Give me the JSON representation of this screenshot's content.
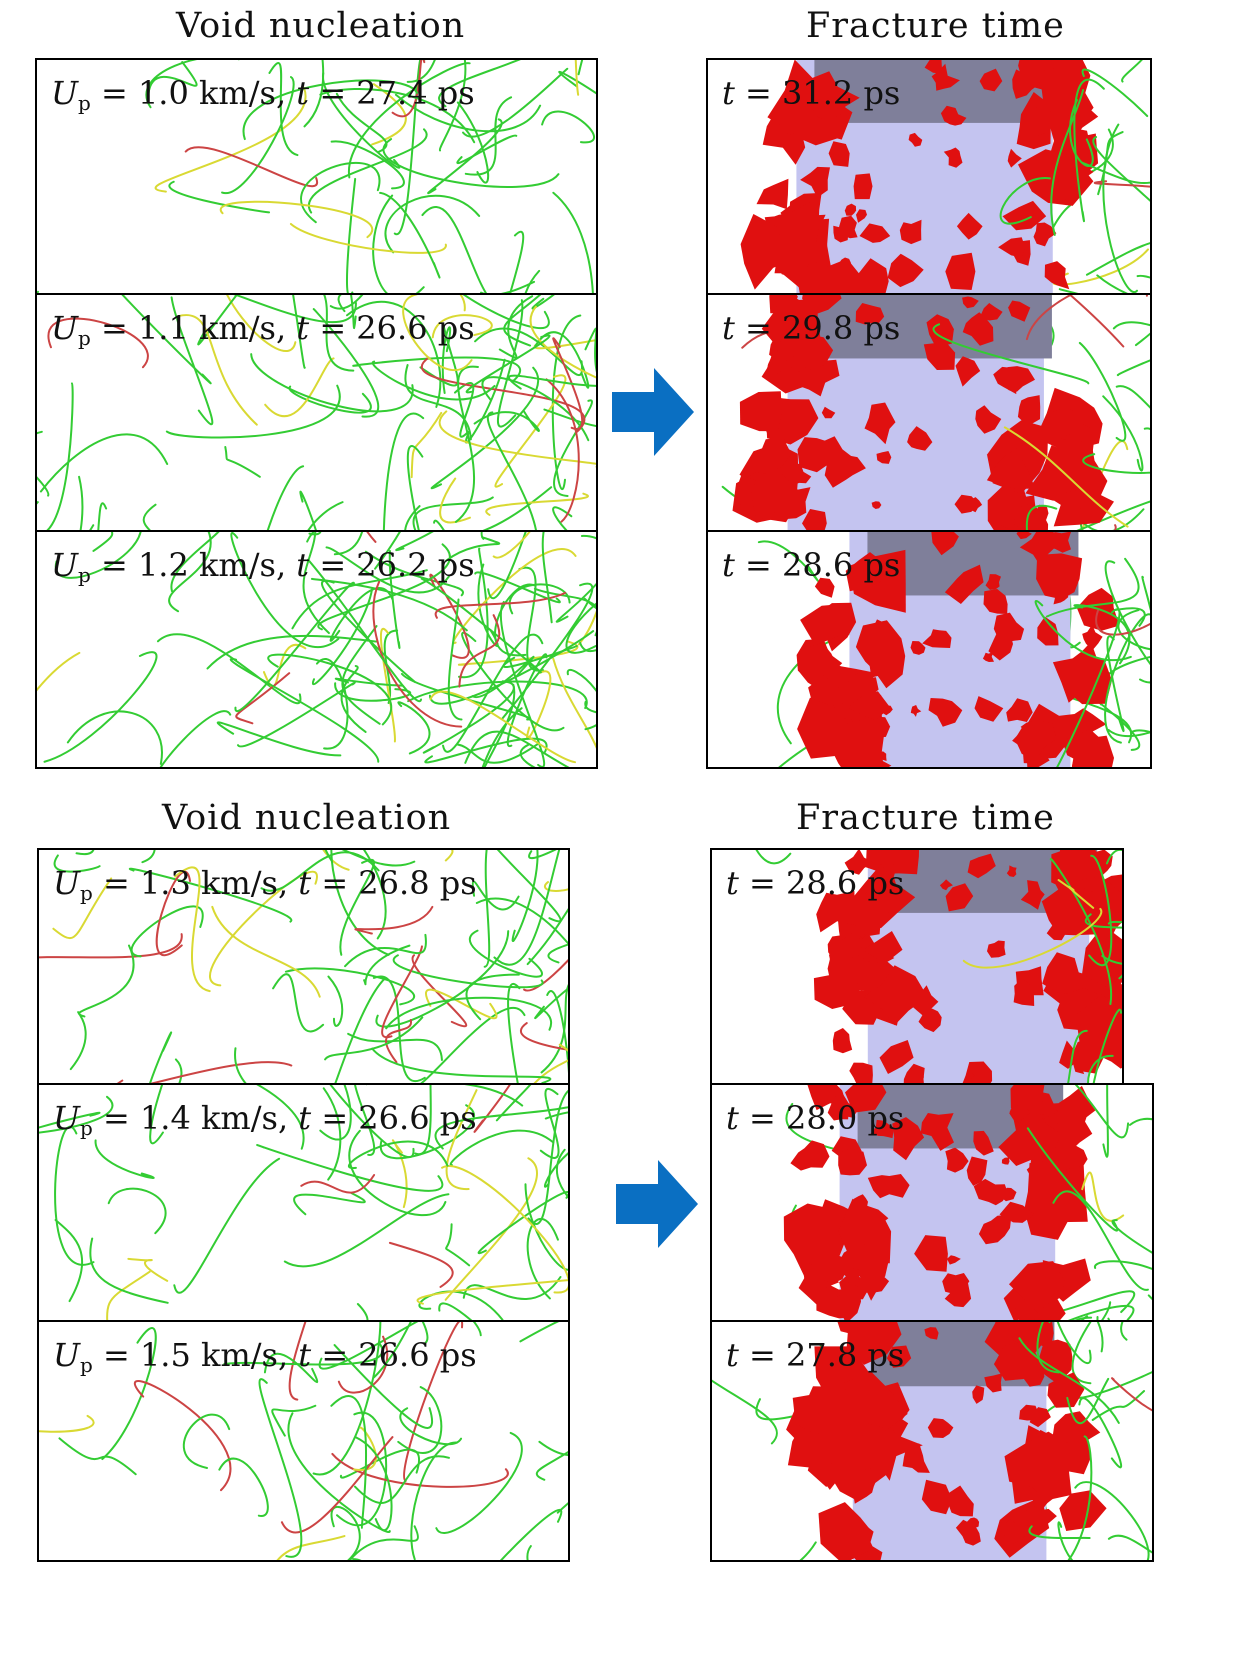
{
  "groups": [
    {
      "left_title": "Void nucleation",
      "right_title": "Fracture time",
      "rows": [
        {
          "up": "1.0",
          "t_nucleation": "27.4",
          "t_fracture": "31.2"
        },
        {
          "up": "1.1",
          "t_nucleation": "26.6",
          "t_fracture": "29.8"
        },
        {
          "up": "1.2",
          "t_nucleation": "26.2",
          "t_fracture": "28.6"
        }
      ]
    },
    {
      "left_title": "Void nucleation",
      "right_title": "Fracture time",
      "rows": [
        {
          "up": "1.3",
          "t_nucleation": "26.8",
          "t_fracture": "28.6"
        },
        {
          "up": "1.4",
          "t_nucleation": "26.6",
          "t_fracture": "28.0"
        },
        {
          "up": "1.5",
          "t_nucleation": "26.6",
          "t_fracture": "27.8"
        }
      ]
    }
  ],
  "symbols": {
    "velocity": "U",
    "velocity_sub": "p",
    "time": "t",
    "equals": " = ",
    "velocity_unit": " km/s,",
    "time_unit": " ps"
  },
  "colors": {
    "dislocation_green": "#33cc33",
    "dislocation_yellow": "#d9d933",
    "dislocation_red": "#cc4444",
    "void_red": "#e01010",
    "material_lavender": "#c4c4f0",
    "material_top": "#7f7f9a",
    "arrow_blue": "#0a6fc2"
  },
  "icons": {
    "transition_arrow": "right-arrow-icon"
  }
}
